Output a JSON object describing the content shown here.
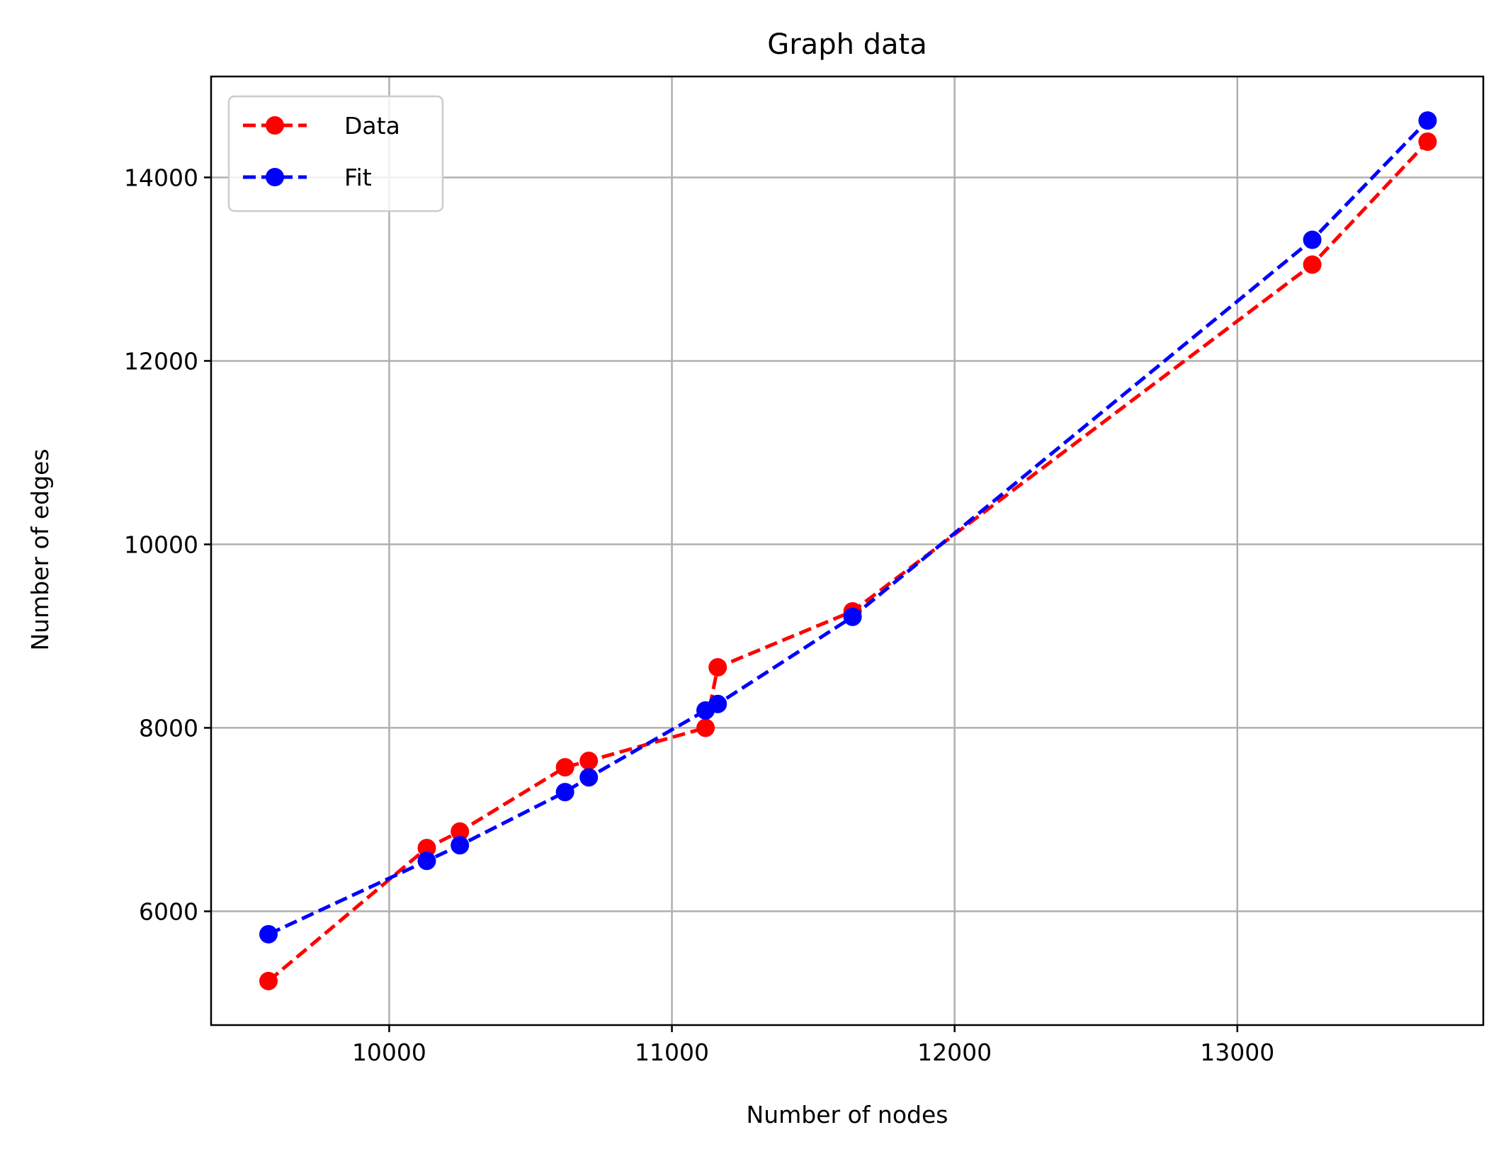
{
  "chart_data": {
    "type": "line",
    "title": "Graph data",
    "xlabel": "Number of nodes",
    "ylabel": "Number of edges",
    "xlim": [
      9370,
      13870
    ],
    "ylim": [
      4760,
      15100
    ],
    "xticks": [
      10000,
      11000,
      12000,
      13000
    ],
    "yticks": [
      6000,
      8000,
      10000,
      12000,
      14000
    ],
    "grid": true,
    "legend_position": "upper-left",
    "series": [
      {
        "name": "Data",
        "color": "#ff0000",
        "marker": "circle",
        "linestyle": "dashed",
        "points": [
          {
            "x": 9573,
            "y": 5240
          },
          {
            "x": 10133,
            "y": 6690
          },
          {
            "x": 10250,
            "y": 6870
          },
          {
            "x": 10622,
            "y": 7570
          },
          {
            "x": 10706,
            "y": 7640
          },
          {
            "x": 11119,
            "y": 8000
          },
          {
            "x": 11162,
            "y": 8660
          },
          {
            "x": 11639,
            "y": 9270
          },
          {
            "x": 13265,
            "y": 13050
          },
          {
            "x": 13673,
            "y": 14390
          }
        ]
      },
      {
        "name": "Fit",
        "color": "#0000ff",
        "marker": "circle",
        "linestyle": "dashed",
        "points": [
          {
            "x": 9573,
            "y": 5750
          },
          {
            "x": 10133,
            "y": 6550
          },
          {
            "x": 10250,
            "y": 6720
          },
          {
            "x": 10622,
            "y": 7300
          },
          {
            "x": 10706,
            "y": 7460
          },
          {
            "x": 11119,
            "y": 8190
          },
          {
            "x": 11162,
            "y": 8260
          },
          {
            "x": 11639,
            "y": 9210
          },
          {
            "x": 13265,
            "y": 13320
          },
          {
            "x": 13673,
            "y": 14620
          }
        ]
      }
    ]
  }
}
